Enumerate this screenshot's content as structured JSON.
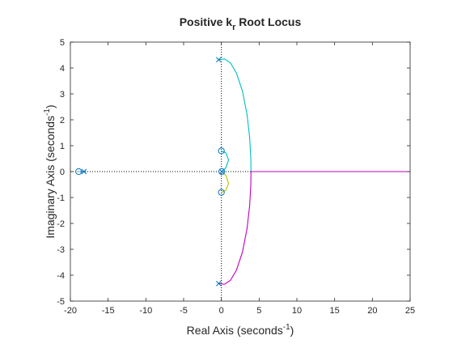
{
  "chart_data": {
    "type": "line",
    "title": {
      "main": "Positive k",
      "sub": "r",
      "rest": " Root Locus"
    },
    "xlabel": {
      "text": "Real Axis (seconds",
      "sup": "-1",
      "end": ")"
    },
    "ylabel": {
      "text": "Imaginary Axis (seconds",
      "sup": "-1",
      "end": ")"
    },
    "xlim": [
      -20,
      25
    ],
    "ylim": [
      -5,
      5
    ],
    "xticks": [
      -20,
      -15,
      -10,
      -5,
      0,
      5,
      10,
      15,
      20,
      25
    ],
    "yticks": [
      -5,
      -4,
      -3,
      -2,
      -1,
      0,
      1,
      2,
      3,
      4,
      5
    ],
    "grid": false,
    "reference_lines": {
      "vertical_x": 0,
      "horizontal_y": 0,
      "style": "dotted",
      "color": "#000000"
    },
    "series": [
      {
        "color": "#00bfbf",
        "values": [
          [
            -0.35,
            4.32
          ],
          [
            0.4,
            4.35
          ],
          [
            1.2,
            4.2
          ],
          [
            2.0,
            3.8
          ],
          [
            2.8,
            3.1
          ],
          [
            3.4,
            2.2
          ],
          [
            3.75,
            1.3
          ],
          [
            3.9,
            0.5
          ],
          [
            3.92,
            0.0
          ],
          [
            25,
            0.0
          ]
        ]
      },
      {
        "color": "#bf00bf",
        "values": [
          [
            -0.35,
            -4.32
          ],
          [
            0.4,
            -4.35
          ],
          [
            1.2,
            -4.2
          ],
          [
            2.0,
            -3.8
          ],
          [
            2.8,
            -3.1
          ],
          [
            3.4,
            -2.2
          ],
          [
            3.75,
            -1.3
          ],
          [
            3.9,
            -0.5
          ],
          [
            3.92,
            0.0
          ],
          [
            25,
            0.0
          ]
        ]
      },
      {
        "color": "#00bfbf",
        "values": [
          [
            0.05,
            0.0
          ],
          [
            0.6,
            0.15
          ],
          [
            0.95,
            0.45
          ],
          [
            0.6,
            0.72
          ],
          [
            0.0,
            0.8
          ]
        ]
      },
      {
        "color": "#bfbf00",
        "values": [
          [
            0.05,
            0.0
          ],
          [
            0.6,
            -0.15
          ],
          [
            0.95,
            -0.45
          ],
          [
            0.6,
            -0.72
          ],
          [
            0.0,
            -0.8
          ]
        ]
      },
      {
        "color": "#0072bd",
        "values": [
          [
            -18.2,
            0.0
          ],
          [
            -18.8,
            0.0
          ]
        ]
      }
    ],
    "poles": [
      [
        -0.35,
        4.32
      ],
      [
        -0.35,
        -4.32
      ],
      [
        -18.2,
        0.0
      ],
      [
        0.05,
        0.0
      ]
    ],
    "zeros": [
      [
        0.0,
        0.8
      ],
      [
        0.0,
        -0.8
      ],
      [
        -18.9,
        0.0
      ],
      [
        0.05,
        0.0
      ]
    ],
    "marker_color": "#0072bd"
  }
}
